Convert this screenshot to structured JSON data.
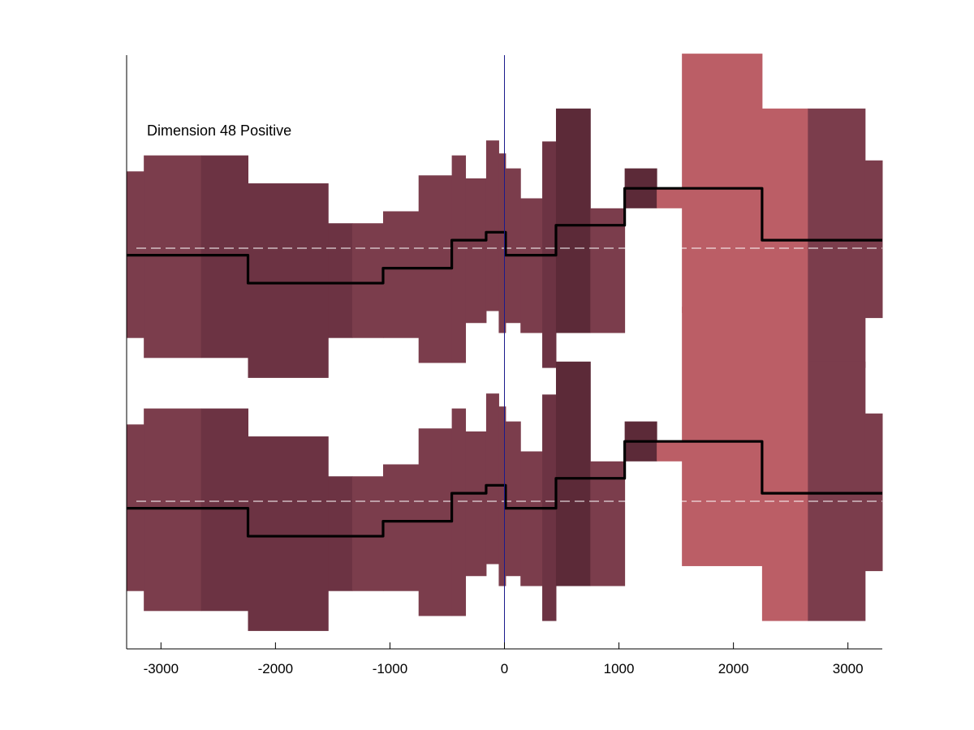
{
  "chart_data": {
    "type": "area",
    "annotation": "Dimension 48 Positive",
    "xlim": [
      -3300,
      3300
    ],
    "x_ticks": [
      -3000,
      -2000,
      -1000,
      0,
      1000,
      2000,
      3000
    ],
    "x_tick_labels": [
      "-3000",
      "-2000",
      "-1000",
      "0",
      "1000",
      "2000",
      "3000"
    ],
    "vertical_marker_x": 0,
    "grid": false,
    "colors": {
      "band_default": "#7b3d4c",
      "band_dark": "#6c3343",
      "band_darker": "#5c2a38",
      "band_light": "#bb5e66",
      "mean_line": "#000000",
      "zero_line": "#ffffff",
      "marker_line": "#1a1a8c",
      "axis": "#000000"
    },
    "panels": [
      {
        "name": "upper",
        "baseline": 0,
        "segments": [
          {
            "x0": -3300,
            "x1": -3150,
            "lo": -0.9,
            "hi": 0.77,
            "mean": -0.07,
            "shade": "band_default"
          },
          {
            "x0": -3150,
            "x1": -2650,
            "lo": -1.1,
            "hi": 0.93,
            "mean": -0.07,
            "shade": "band_default"
          },
          {
            "x0": -2650,
            "x1": -2240,
            "lo": -1.1,
            "hi": 0.93,
            "mean": -0.07,
            "shade": "band_dark"
          },
          {
            "x0": -2240,
            "x1": -1540,
            "lo": -1.3,
            "hi": 0.65,
            "mean": -0.35,
            "shade": "band_dark"
          },
          {
            "x0": -1540,
            "x1": -1330,
            "lo": -0.9,
            "hi": 0.25,
            "mean": -0.35,
            "shade": "band_dark"
          },
          {
            "x0": -1330,
            "x1": -1060,
            "lo": -0.9,
            "hi": 0.25,
            "mean": -0.35,
            "shade": "band_default"
          },
          {
            "x0": -1060,
            "x1": -750,
            "lo": -0.9,
            "hi": 0.37,
            "mean": -0.2,
            "shade": "band_default"
          },
          {
            "x0": -750,
            "x1": -460,
            "lo": -1.15,
            "hi": 0.73,
            "mean": -0.2,
            "shade": "band_default"
          },
          {
            "x0": -460,
            "x1": -340,
            "lo": -1.15,
            "hi": 0.93,
            "mean": 0.08,
            "shade": "band_default"
          },
          {
            "x0": -340,
            "x1": -160,
            "lo": -0.75,
            "hi": 0.7,
            "mean": 0.08,
            "shade": "band_default"
          },
          {
            "x0": -160,
            "x1": -50,
            "lo": -0.63,
            "hi": 1.08,
            "mean": 0.16,
            "shade": "band_default"
          },
          {
            "x0": -50,
            "x1": 10,
            "lo": -0.85,
            "hi": 0.95,
            "mean": 0.16,
            "shade": "band_default"
          },
          {
            "x0": 10,
            "x1": 140,
            "lo": -0.75,
            "hi": 0.8,
            "mean": -0.07,
            "shade": "band_default"
          },
          {
            "x0": 140,
            "x1": 330,
            "lo": -0.85,
            "hi": 0.5,
            "mean": -0.07,
            "shade": "band_default"
          },
          {
            "x0": 330,
            "x1": 450,
            "lo": -1.2,
            "hi": 1.07,
            "mean": -0.07,
            "shade": "band_dark"
          },
          {
            "x0": 450,
            "x1": 750,
            "lo": -0.85,
            "hi": 1.4,
            "mean": 0.23,
            "shade": "band_darker"
          },
          {
            "x0": 750,
            "x1": 1050,
            "lo": -0.85,
            "hi": 0.4,
            "mean": 0.23,
            "shade": "band_default"
          },
          {
            "x0": 1050,
            "x1": 1330,
            "lo": 0.4,
            "hi": 0.8,
            "mean": 0.6,
            "shade": "band_darker"
          },
          {
            "x0": 1330,
            "x1": 1550,
            "lo": 0.4,
            "hi": 0.6,
            "mean": 0.6,
            "shade": "band_light"
          },
          {
            "x0": 1550,
            "x1": 2250,
            "lo": -0.65,
            "hi": 1.95,
            "mean": 0.6,
            "shade": "band_light"
          },
          {
            "x0": 2250,
            "x1": 2650,
            "lo": -1.2,
            "hi": 1.4,
            "mean": 0.08,
            "shade": "band_light"
          },
          {
            "x0": 2650,
            "x1": 3150,
            "lo": -1.2,
            "hi": 1.4,
            "mean": 0.08,
            "shade": "band_default"
          },
          {
            "x0": 3150,
            "x1": 3300,
            "lo": -0.7,
            "hi": 0.88,
            "mean": 0.08,
            "shade": "band_default"
          }
        ]
      },
      {
        "name": "lower",
        "baseline": 0,
        "segments": [
          {
            "x0": -3300,
            "x1": -3150,
            "lo": -0.9,
            "hi": 0.77,
            "mean": -0.07,
            "shade": "band_default"
          },
          {
            "x0": -3150,
            "x1": -2650,
            "lo": -1.1,
            "hi": 0.93,
            "mean": -0.07,
            "shade": "band_default"
          },
          {
            "x0": -2650,
            "x1": -2240,
            "lo": -1.1,
            "hi": 0.93,
            "mean": -0.07,
            "shade": "band_dark"
          },
          {
            "x0": -2240,
            "x1": -1540,
            "lo": -1.3,
            "hi": 0.65,
            "mean": -0.35,
            "shade": "band_dark"
          },
          {
            "x0": -1540,
            "x1": -1330,
            "lo": -0.9,
            "hi": 0.25,
            "mean": -0.35,
            "shade": "band_dark"
          },
          {
            "x0": -1330,
            "x1": -1060,
            "lo": -0.9,
            "hi": 0.25,
            "mean": -0.35,
            "shade": "band_default"
          },
          {
            "x0": -1060,
            "x1": -750,
            "lo": -0.9,
            "hi": 0.37,
            "mean": -0.2,
            "shade": "band_default"
          },
          {
            "x0": -750,
            "x1": -460,
            "lo": -1.15,
            "hi": 0.73,
            "mean": -0.2,
            "shade": "band_default"
          },
          {
            "x0": -460,
            "x1": -340,
            "lo": -1.15,
            "hi": 0.93,
            "mean": 0.08,
            "shade": "band_default"
          },
          {
            "x0": -340,
            "x1": -160,
            "lo": -0.75,
            "hi": 0.7,
            "mean": 0.08,
            "shade": "band_default"
          },
          {
            "x0": -160,
            "x1": -50,
            "lo": -0.63,
            "hi": 1.08,
            "mean": 0.16,
            "shade": "band_default"
          },
          {
            "x0": -50,
            "x1": 10,
            "lo": -0.85,
            "hi": 0.95,
            "mean": 0.16,
            "shade": "band_default"
          },
          {
            "x0": 10,
            "x1": 140,
            "lo": -0.75,
            "hi": 0.8,
            "mean": -0.07,
            "shade": "band_default"
          },
          {
            "x0": 140,
            "x1": 330,
            "lo": -0.85,
            "hi": 0.5,
            "mean": -0.07,
            "shade": "band_default"
          },
          {
            "x0": 330,
            "x1": 450,
            "lo": -1.2,
            "hi": 1.07,
            "mean": -0.07,
            "shade": "band_dark"
          },
          {
            "x0": 450,
            "x1": 750,
            "lo": -0.85,
            "hi": 1.4,
            "mean": 0.23,
            "shade": "band_darker"
          },
          {
            "x0": 750,
            "x1": 1050,
            "lo": -0.85,
            "hi": 0.4,
            "mean": 0.23,
            "shade": "band_default"
          },
          {
            "x0": 1050,
            "x1": 1330,
            "lo": 0.4,
            "hi": 0.8,
            "mean": 0.6,
            "shade": "band_darker"
          },
          {
            "x0": 1330,
            "x1": 1550,
            "lo": 0.4,
            "hi": 0.6,
            "mean": 0.6,
            "shade": "band_light"
          },
          {
            "x0": 1550,
            "x1": 2250,
            "lo": -0.65,
            "hi": 1.95,
            "mean": 0.6,
            "shade": "band_light"
          },
          {
            "x0": 2250,
            "x1": 2650,
            "lo": -1.2,
            "hi": 1.4,
            "mean": 0.08,
            "shade": "band_light"
          },
          {
            "x0": 2650,
            "x1": 3150,
            "lo": -1.2,
            "hi": 1.4,
            "mean": 0.08,
            "shade": "band_default"
          },
          {
            "x0": 3150,
            "x1": 3300,
            "lo": -0.7,
            "hi": 0.88,
            "mean": 0.08,
            "shade": "band_default"
          }
        ]
      }
    ]
  }
}
